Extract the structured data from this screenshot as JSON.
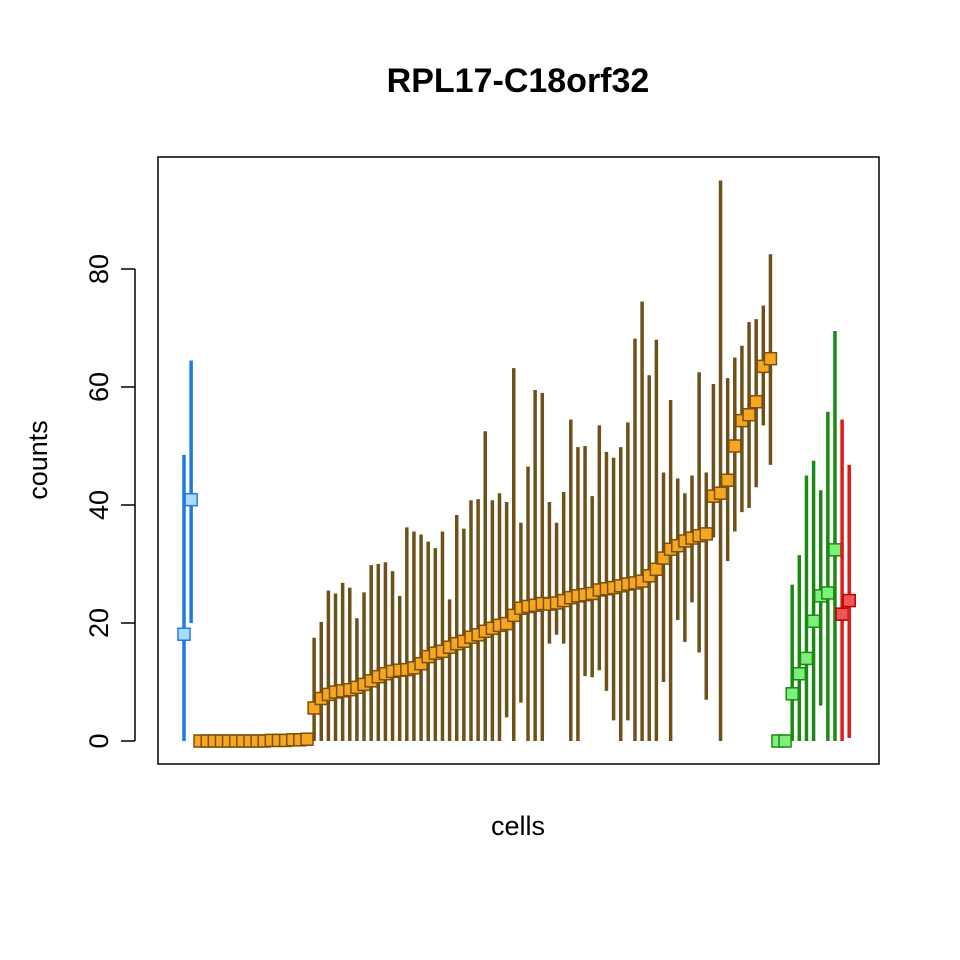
{
  "chart_data": {
    "type": "scatter",
    "title": "RPL17-C18orf32",
    "xlabel": "cells",
    "ylabel": "counts",
    "ylim": [
      -4,
      97
    ],
    "yticks": [
      0,
      20,
      40,
      60,
      80
    ],
    "grid": false,
    "legend": "none",
    "colors": {
      "blue_line": "#1f7ae0",
      "blue_point": "#a9dcff",
      "brown_line": "#6e5118",
      "orange_point": "#f5a623",
      "green_line": "#1b8a12",
      "green_point": "#7cf07a",
      "red_line": "#e01b1b",
      "red_point": "#f05656"
    },
    "series": [
      {
        "group": "blue",
        "line_color": "#1f7ae0",
        "point_color": "#a9dcff",
        "point_edge": "#1f7ae0",
        "points": [
          [
            18.1,
            0,
            48.5
          ],
          [
            40.9,
            20,
            64.5
          ]
        ]
      },
      {
        "group": "orange",
        "line_color": "#6e5118",
        "point_color": "#f5a623",
        "point_edge": "#7a4f08",
        "points": [
          [
            0,
            0,
            0
          ],
          [
            0,
            0,
            0
          ],
          [
            0,
            0,
            0
          ],
          [
            0,
            0,
            0
          ],
          [
            0,
            0,
            0
          ],
          [
            0,
            0,
            0
          ],
          [
            0,
            0,
            0
          ],
          [
            0,
            0,
            0
          ],
          [
            0,
            0,
            0
          ],
          [
            0,
            0,
            0
          ],
          [
            0.1,
            0,
            0.2
          ],
          [
            0.1,
            0,
            0.2
          ],
          [
            0.1,
            0,
            0.2
          ],
          [
            0.2,
            0,
            0.3
          ],
          [
            0.2,
            0,
            0.4
          ],
          [
            0.3,
            0,
            0.5
          ],
          [
            5.6,
            0,
            17.5
          ],
          [
            7.2,
            0,
            20.2
          ],
          [
            7.9,
            0,
            25.5
          ],
          [
            8.3,
            0,
            25.0
          ],
          [
            8.5,
            0,
            26.8
          ],
          [
            8.7,
            0,
            26.0
          ],
          [
            9.1,
            0,
            20.8
          ],
          [
            9.6,
            0,
            25.2
          ],
          [
            10.2,
            0,
            29.8
          ],
          [
            10.9,
            0,
            30.0
          ],
          [
            11.4,
            0,
            30.3
          ],
          [
            11.8,
            0,
            28.8
          ],
          [
            12.0,
            0,
            24.6
          ],
          [
            12.1,
            0,
            36.2
          ],
          [
            12.4,
            0,
            35.5
          ],
          [
            13.1,
            0,
            35.0
          ],
          [
            14.3,
            0,
            33.8
          ],
          [
            14.9,
            0,
            32.7
          ],
          [
            15.2,
            0,
            35.5
          ],
          [
            15.9,
            0,
            24.0
          ],
          [
            16.5,
            0,
            38.3
          ],
          [
            16.9,
            0,
            36.0
          ],
          [
            17.6,
            0,
            40.8
          ],
          [
            18.0,
            0,
            41.0
          ],
          [
            18.6,
            0,
            52.5
          ],
          [
            19.1,
            0,
            40.8
          ],
          [
            19.6,
            0,
            42.0
          ],
          [
            19.9,
            4.0,
            40.5
          ],
          [
            21.3,
            0,
            63.2
          ],
          [
            22.5,
            6.5,
            37.0
          ],
          [
            22.8,
            0,
            46.5
          ],
          [
            23.0,
            0,
            59.5
          ],
          [
            23.3,
            0,
            59.0
          ],
          [
            23.2,
            16.5,
            40.5
          ],
          [
            23.4,
            18.0,
            37.0
          ],
          [
            23.8,
            16.5,
            42.2
          ],
          [
            24.3,
            0,
            54.5
          ],
          [
            24.6,
            0,
            49.8
          ],
          [
            24.8,
            11.0,
            50.0
          ],
          [
            25.0,
            10.8,
            41.5
          ],
          [
            25.6,
            12.0,
            53.5
          ],
          [
            25.8,
            8.5,
            49.0
          ],
          [
            26.0,
            3.5,
            48.0
          ],
          [
            26.3,
            0,
            49.8
          ],
          [
            26.6,
            3.5,
            54.0
          ],
          [
            26.8,
            0,
            68.2
          ],
          [
            27.1,
            0,
            74.5
          ],
          [
            28.0,
            0,
            62.0
          ],
          [
            29.1,
            0,
            68.0
          ],
          [
            31.0,
            10.0,
            45.5
          ],
          [
            32.5,
            0,
            57.8
          ],
          [
            33.1,
            20.5,
            44.5
          ],
          [
            33.9,
            16.8,
            42.0
          ],
          [
            34.4,
            23.5,
            45.0
          ],
          [
            34.8,
            15.0,
            62.5
          ],
          [
            35.1,
            7.0,
            45.5
          ],
          [
            41.5,
            34.5,
            60.5
          ],
          [
            42.0,
            0,
            95.0
          ],
          [
            44.2,
            30.5,
            61.5
          ],
          [
            50.0,
            35.5,
            65.0
          ],
          [
            54.3,
            38.8,
            67.0
          ],
          [
            55.3,
            39.5,
            71.0
          ],
          [
            57.5,
            43.0,
            71.5
          ],
          [
            63.5,
            53.5,
            73.8
          ],
          [
            64.8,
            46.8,
            82.5
          ]
        ]
      },
      {
        "group": "green",
        "line_color": "#1b8a12",
        "point_color": "#7cf07a",
        "point_edge": "#1b8a12",
        "points": [
          [
            0,
            0,
            0
          ],
          [
            0,
            0,
            0
          ],
          [
            8.0,
            0,
            26.5
          ],
          [
            11.4,
            0,
            31.5
          ],
          [
            14.0,
            0,
            45.0
          ],
          [
            20.3,
            0,
            47.5
          ],
          [
            24.6,
            6.0,
            42.5
          ],
          [
            25.1,
            0,
            55.8
          ],
          [
            32.4,
            0,
            69.5
          ]
        ]
      },
      {
        "group": "red",
        "line_color": "#e01b1b",
        "point_color": "#f05656",
        "point_edge": "#b80000",
        "points": [
          [
            21.5,
            0,
            54.5
          ],
          [
            23.8,
            0.5,
            46.8
          ]
        ]
      }
    ]
  }
}
